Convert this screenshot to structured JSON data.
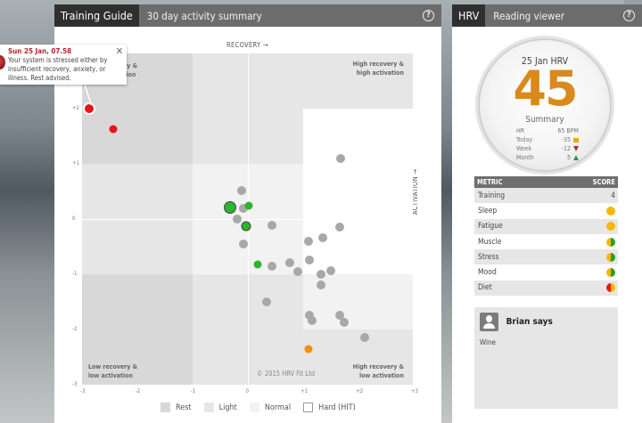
{
  "left_panel": {
    "tab_active": "Training Guide",
    "tab_subtitle": "30 day activity summary",
    "help_icon": "?"
  },
  "tooltip": {
    "title": "Sun 25 Jan, 07.58",
    "body": "Your system is stressed either by insufficient recovery, anxiety, or illness. Rest advised.",
    "close_label": "✕"
  },
  "chart_data": {
    "type": "scatter",
    "title": "30 day activity summary",
    "xlabel": "RECOVERY →",
    "ylabel": "ACTIVATION →",
    "xlim": [
      -3,
      3
    ],
    "ylim": [
      -3,
      3
    ],
    "x_ticks": [
      "-3",
      "-2",
      "-1",
      "0",
      "+1",
      "+2",
      "+3"
    ],
    "y_ticks": [
      "+3",
      "+2",
      "+1",
      "0",
      "-1",
      "-2",
      "-3"
    ],
    "quadrant_labels": {
      "top_left": "Low recovery & high activation",
      "top_right": "High recovery & high activation",
      "bottom_left": "Low recovery & low activation",
      "bottom_right": "High recovery & low activation"
    },
    "copyright": "© 2015 HRV Fit Ltd",
    "legend": [
      {
        "label": "Rest",
        "color": "#d8d8d8"
      },
      {
        "label": "Light",
        "color": "#e6e6e6"
      },
      {
        "label": "Normal",
        "color": "#f2f2f2"
      },
      {
        "label": "Hard (HIT)",
        "color": "#ffffff"
      }
    ],
    "points": [
      {
        "x": -2.87,
        "y": 2.0,
        "color": "#e8141a",
        "size": 14,
        "highlighted": true
      },
      {
        "x": -2.44,
        "y": 1.63,
        "color": "#e8141a",
        "size": 9
      },
      {
        "x": 1.69,
        "y": 1.1,
        "color": "#a8a8a8",
        "size": 10
      },
      {
        "x": -0.1,
        "y": 0.52,
        "color": "#a8a8a8",
        "size": 10
      },
      {
        "x": -0.32,
        "y": 0.21,
        "color": "#2db52d",
        "size": 14,
        "outlined": true
      },
      {
        "x": -0.08,
        "y": 0.19,
        "color": "#a8a8a8",
        "size": 10
      },
      {
        "x": 0.03,
        "y": 0.24,
        "color": "#2db52d",
        "size": 9
      },
      {
        "x": -0.19,
        "y": 0.0,
        "color": "#a8a8a8",
        "size": 10
      },
      {
        "x": -0.02,
        "y": -0.13,
        "color": "#2db52d",
        "size": 11,
        "outlined": true
      },
      {
        "x": 0.44,
        "y": -0.11,
        "color": "#a8a8a8",
        "size": 10
      },
      {
        "x": -0.08,
        "y": -0.45,
        "color": "#a8a8a8",
        "size": 10
      },
      {
        "x": 1.68,
        "y": -0.15,
        "color": "#a8a8a8",
        "size": 10
      },
      {
        "x": 1.11,
        "y": -0.4,
        "color": "#a8a8a8",
        "size": 10
      },
      {
        "x": 1.37,
        "y": -0.34,
        "color": "#a8a8a8",
        "size": 10
      },
      {
        "x": 1.13,
        "y": -0.74,
        "color": "#a8a8a8",
        "size": 10
      },
      {
        "x": 0.18,
        "y": -0.82,
        "color": "#2db52d",
        "size": 9
      },
      {
        "x": 0.45,
        "y": -0.85,
        "color": "#a8a8a8",
        "size": 10
      },
      {
        "x": 0.77,
        "y": -0.79,
        "color": "#a8a8a8",
        "size": 10
      },
      {
        "x": 0.92,
        "y": -0.95,
        "color": "#a8a8a8",
        "size": 10
      },
      {
        "x": 1.34,
        "y": -1.0,
        "color": "#a8a8a8",
        "size": 10
      },
      {
        "x": 1.52,
        "y": -0.94,
        "color": "#a8a8a8",
        "size": 10
      },
      {
        "x": 1.34,
        "y": -1.19,
        "color": "#a8a8a8",
        "size": 10
      },
      {
        "x": 0.34,
        "y": -1.5,
        "color": "#a8a8a8",
        "size": 10
      },
      {
        "x": 1.13,
        "y": -1.74,
        "color": "#a8a8a8",
        "size": 10
      },
      {
        "x": 1.18,
        "y": -1.84,
        "color": "#a8a8a8",
        "size": 10
      },
      {
        "x": 1.68,
        "y": -1.74,
        "color": "#a8a8a8",
        "size": 10
      },
      {
        "x": 1.76,
        "y": -1.87,
        "color": "#a8a8a8",
        "size": 10
      },
      {
        "x": 2.13,
        "y": -2.15,
        "color": "#a8a8a8",
        "size": 10
      },
      {
        "x": 1.11,
        "y": -2.35,
        "color": "#f39200",
        "size": 9
      }
    ]
  },
  "right_panel": {
    "tab_active": "HRV",
    "tab_subtitle": "Reading viewer",
    "help_icon": "?",
    "gauge": {
      "date": "25 Jan HRV",
      "score": "45",
      "summary_label": "Summary",
      "rows": [
        {
          "label": "HR",
          "value": "65 BPM",
          "indicator": "none"
        },
        {
          "label": "Today",
          "value": "-35",
          "indicator": "square-orange"
        },
        {
          "label": "Week",
          "value": "-12",
          "indicator": "triangle-down-red"
        },
        {
          "label": "Month",
          "value": "5",
          "indicator": "triangle-up-green"
        }
      ]
    },
    "metrics": {
      "header_metric": "METRIC",
      "header_score": "SCORE",
      "rows": [
        {
          "label": "Training",
          "score": "4",
          "dot": null
        },
        {
          "label": "Sleep",
          "score": "",
          "dot": [
            "#f5b800",
            "#f5b800"
          ]
        },
        {
          "label": "Fatigue",
          "score": "",
          "dot": [
            "#f5b800",
            "#f5b800"
          ]
        },
        {
          "label": "Muscle",
          "score": "",
          "dot": [
            "#f5b800",
            "#2aa02a"
          ]
        },
        {
          "label": "Stress",
          "score": "",
          "dot": [
            "#f5b800",
            "#2aa02a"
          ]
        },
        {
          "label": "Mood",
          "score": "",
          "dot": [
            "#f5b800",
            "#2aa02a"
          ]
        },
        {
          "label": "Diet",
          "score": "",
          "dot": [
            "#e8141a",
            "#f5b800"
          ]
        }
      ]
    },
    "says": {
      "name": "Brian says",
      "text": "Wine"
    }
  }
}
